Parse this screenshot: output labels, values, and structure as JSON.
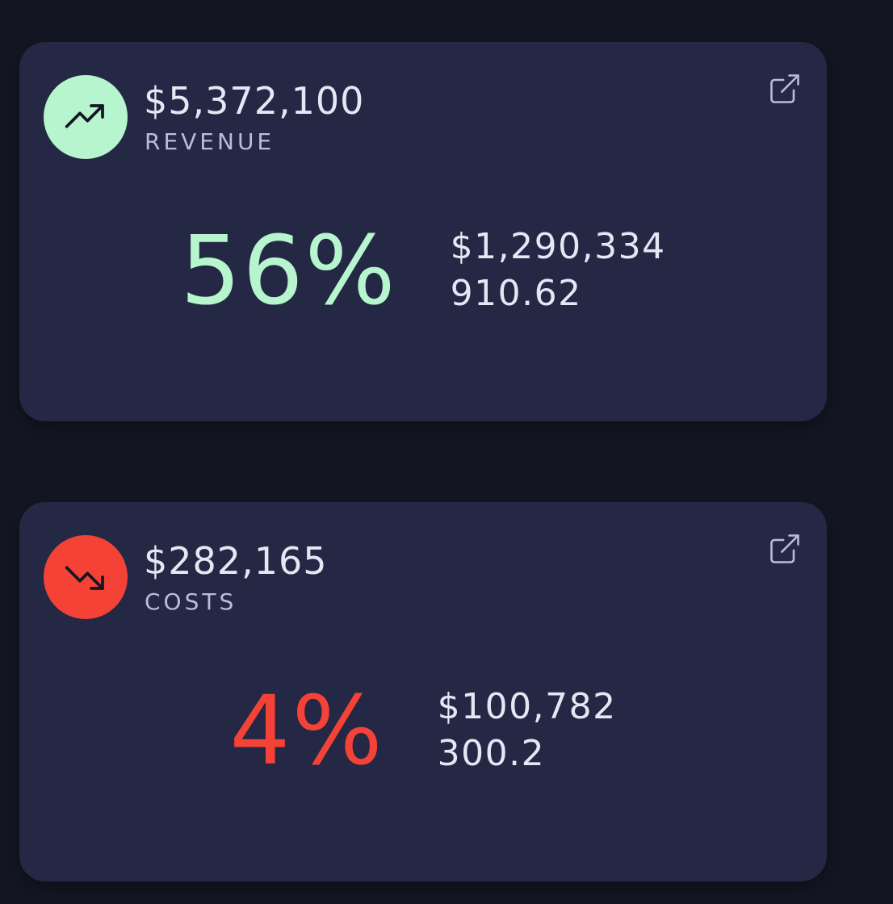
{
  "theme": {
    "page_bg": "#141624",
    "card_bg": "#242844",
    "text_primary": "#e6e7f4",
    "text_secondary": "#b9bcdc"
  },
  "cards": [
    {
      "id": "revenue",
      "amount": "$5,372,100",
      "label": "REVENUE",
      "icon": "trending-up-icon",
      "accent": "#b6f5cd",
      "icon_color": "#141624",
      "percent": "56%",
      "detail_value": "$1,290,334",
      "detail_secondary": "910.62",
      "action_icon": "external-link-icon"
    },
    {
      "id": "costs",
      "amount": "$282,165",
      "label": "COSTS",
      "icon": "trending-down-icon",
      "accent": "#f44336",
      "icon_color": "#141624",
      "percent": "4%",
      "detail_value": "$100,782",
      "detail_secondary": "300.2",
      "action_icon": "external-link-icon"
    }
  ]
}
